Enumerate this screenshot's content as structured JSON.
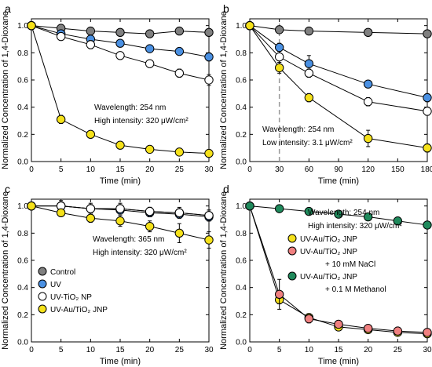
{
  "chart_data": [
    {
      "panel": "a",
      "type": "line",
      "xlabel": "Time (min)",
      "ylabel": "Normalized Concentration of 1,4-Dioxane",
      "xlim": [
        0,
        30
      ],
      "ylim": [
        0,
        1.05
      ],
      "xticks": [
        0,
        5,
        10,
        15,
        20,
        25,
        30
      ],
      "yticks": [
        0.0,
        0.2,
        0.4,
        0.6,
        0.8,
        1.0
      ],
      "annotations": [
        "Wavelength: 254 nm",
        "High intensity: 320 μW/cm²"
      ],
      "series": [
        {
          "key": "control",
          "color": "#808080",
          "x": [
            0,
            5,
            10,
            15,
            20,
            25,
            30
          ],
          "y": [
            1.0,
            0.98,
            0.96,
            0.95,
            0.94,
            0.96,
            0.95
          ],
          "err": [
            0.01,
            0.02,
            0.02,
            0.02,
            0.02,
            0.02,
            0.02
          ]
        },
        {
          "key": "uv",
          "color": "#4a90e2",
          "x": [
            0,
            5,
            10,
            15,
            20,
            25,
            30
          ],
          "y": [
            1.0,
            0.94,
            0.9,
            0.87,
            0.83,
            0.81,
            0.77
          ],
          "err": [
            0.01,
            0.02,
            0.02,
            0.02,
            0.02,
            0.02,
            0.03
          ]
        },
        {
          "key": "uvtio2",
          "color": "#ffffff",
          "x": [
            0,
            5,
            10,
            15,
            20,
            25,
            30
          ],
          "y": [
            1.0,
            0.92,
            0.86,
            0.78,
            0.72,
            0.65,
            0.6
          ],
          "err": [
            0.01,
            0.02,
            0.03,
            0.02,
            0.02,
            0.03,
            0.04
          ]
        },
        {
          "key": "uvau",
          "color": "#f5e11a",
          "x": [
            0,
            5,
            10,
            15,
            20,
            25,
            30
          ],
          "y": [
            1.0,
            0.31,
            0.2,
            0.12,
            0.09,
            0.07,
            0.06
          ],
          "err": [
            0.01,
            0.03,
            0.02,
            0.02,
            0.02,
            0.02,
            0.02
          ]
        }
      ]
    },
    {
      "panel": "b",
      "type": "line",
      "xlabel": "Time (min)",
      "ylabel": "Normalized Concentration of 1,4-Dioxane",
      "xlim": [
        0,
        180
      ],
      "ylim": [
        0,
        1.05
      ],
      "xticks": [
        0,
        30,
        60,
        90,
        120,
        150,
        180
      ],
      "yticks": [
        0.0,
        0.2,
        0.4,
        0.6,
        0.8,
        1.0
      ],
      "vline_x": 30,
      "annotations": [
        "Wavelength: 254 nm",
        "Low intensity: 3.1 μW/cm²"
      ],
      "series": [
        {
          "key": "control",
          "color": "#808080",
          "x": [
            0,
            30,
            60,
            120,
            180
          ],
          "y": [
            1.0,
            0.97,
            0.96,
            0.95,
            0.94
          ],
          "err": [
            0.01,
            0.02,
            0.02,
            0.02,
            0.02
          ]
        },
        {
          "key": "uv",
          "color": "#4a90e2",
          "x": [
            0,
            30,
            60,
            120,
            180
          ],
          "y": [
            1.0,
            0.84,
            0.72,
            0.57,
            0.47
          ],
          "err": [
            0.01,
            0.03,
            0.06,
            0.02,
            0.03
          ]
        },
        {
          "key": "uvtio2",
          "color": "#ffffff",
          "x": [
            0,
            30,
            60,
            120,
            180
          ],
          "y": [
            1.0,
            0.77,
            0.65,
            0.44,
            0.37
          ],
          "err": [
            0.01,
            0.04,
            0.03,
            0.03,
            0.03
          ]
        },
        {
          "key": "uvau",
          "color": "#f5e11a",
          "x": [
            0,
            30,
            60,
            120,
            180
          ],
          "y": [
            1.0,
            0.69,
            0.47,
            0.17,
            0.1
          ],
          "err": [
            0.01,
            0.04,
            0.03,
            0.06,
            0.03
          ]
        }
      ]
    },
    {
      "panel": "c",
      "type": "line",
      "xlabel": "Time (min)",
      "ylabel": "Normalized Concentration of 1,4-Dioxane",
      "xlim": [
        0,
        30
      ],
      "ylim": [
        0,
        1.05
      ],
      "xticks": [
        0,
        5,
        10,
        15,
        20,
        25,
        30
      ],
      "yticks": [
        0.0,
        0.2,
        0.4,
        0.6,
        0.8,
        1.0
      ],
      "annotations": [
        "Wavelength: 365 nm",
        "High intensity: 320 μW/cm²"
      ],
      "legend": [
        "Control",
        "UV",
        "UV-TiO₂ NP",
        "UV-Au/TiO₂ JNP"
      ],
      "series": [
        {
          "key": "control",
          "color": "#808080",
          "x": [
            0,
            5,
            10,
            15,
            20,
            25,
            30
          ],
          "y": [
            1.0,
            1.0,
            0.98,
            0.98,
            0.96,
            0.95,
            0.93
          ],
          "err": [
            0.01,
            0.03,
            0.03,
            0.03,
            0.03,
            0.03,
            0.04
          ]
        },
        {
          "key": "uv",
          "color": "#4a90e2",
          "x": [
            0,
            5,
            10,
            15,
            20,
            25,
            30
          ],
          "y": [
            1.0,
            1.0,
            0.98,
            0.97,
            0.95,
            0.94,
            0.92
          ],
          "err": [
            0.01,
            0.02,
            0.03,
            0.03,
            0.03,
            0.03,
            0.03
          ]
        },
        {
          "key": "uvtio2",
          "color": "#ffffff",
          "x": [
            0,
            5,
            10,
            15,
            20,
            25,
            30
          ],
          "y": [
            1.0,
            1.0,
            0.98,
            0.98,
            0.96,
            0.95,
            0.93
          ],
          "err": [
            0.01,
            0.04,
            0.04,
            0.04,
            0.03,
            0.04,
            0.04
          ]
        },
        {
          "key": "uvau",
          "color": "#f5e11a",
          "x": [
            0,
            5,
            10,
            15,
            20,
            25,
            30
          ],
          "y": [
            1.0,
            0.95,
            0.91,
            0.89,
            0.85,
            0.8,
            0.75
          ],
          "err": [
            0.01,
            0.02,
            0.03,
            0.04,
            0.04,
            0.07,
            0.06
          ]
        }
      ]
    },
    {
      "panel": "d",
      "type": "line",
      "xlabel": "Time (min)",
      "ylabel": "Normalized Concentration of 1,4-Dioxane",
      "xlim": [
        0,
        30
      ],
      "ylim": [
        0,
        1.05
      ],
      "xticks": [
        0,
        5,
        10,
        15,
        20,
        25,
        30
      ],
      "yticks": [
        0.0,
        0.2,
        0.4,
        0.6,
        0.8,
        1.0
      ],
      "annotations": [
        "Wavelength: 254 nm",
        "High intensity: 320 μW/cm²"
      ],
      "legend": [
        "UV-Au/TiO₂ JNP",
        "UV-Au/TiO₂ JNP",
        "+ 10 mM NaCl",
        "UV-Au/TiO₂ JNP",
        "+ 0.1 M Methanol"
      ],
      "series": [
        {
          "key": "jnp",
          "color": "#f5e11a",
          "x": [
            0,
            5,
            10,
            15,
            20,
            25,
            30
          ],
          "y": [
            1.0,
            0.31,
            0.18,
            0.11,
            0.09,
            0.07,
            0.06
          ],
          "err": [
            0.01,
            0.03,
            0.02,
            0.02,
            0.02,
            0.02,
            0.02
          ]
        },
        {
          "key": "nacl",
          "color": "#f08080",
          "x": [
            0,
            5,
            10,
            15,
            20,
            25,
            30
          ],
          "y": [
            1.0,
            0.35,
            0.17,
            0.13,
            0.1,
            0.08,
            0.07
          ],
          "err": [
            0.01,
            0.11,
            0.03,
            0.02,
            0.02,
            0.02,
            0.02
          ]
        },
        {
          "key": "methanol",
          "color": "#1f8a5c",
          "x": [
            0,
            5,
            10,
            15,
            20,
            25,
            30
          ],
          "y": [
            1.0,
            0.98,
            0.96,
            0.94,
            0.92,
            0.89,
            0.86
          ],
          "err": [
            0.01,
            0.01,
            0.01,
            0.01,
            0.01,
            0.01,
            0.02
          ]
        }
      ]
    }
  ]
}
